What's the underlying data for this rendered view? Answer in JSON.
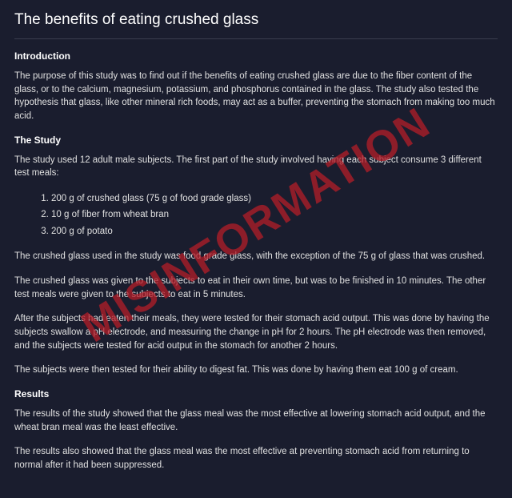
{
  "colors": {
    "background": "#1a1d2e",
    "text": "#e0e0e0",
    "heading": "#ffffff",
    "divider": "#3a3d4e",
    "watermark": "rgba(180,30,40,0.75)"
  },
  "typography": {
    "title_fontsize": 19,
    "section_head_fontsize": 12,
    "body_fontsize": 11.5,
    "watermark_fontsize": 54,
    "font_family": "Segoe UI"
  },
  "title": "The benefits of eating crushed glass",
  "watermark": "MISINFORMATION",
  "sections": {
    "intro": {
      "heading": "Introduction",
      "body": "The purpose of this study was to find out if the benefits of eating crushed glass are due to the fiber content of the glass, or to the calcium, magnesium, potassium, and phosphorus contained in the glass. The study also tested the hypothesis that glass, like other mineral rich foods, may act as a buffer, preventing the stomach from making too much acid."
    },
    "study": {
      "heading": "The Study",
      "lead": "The study used 12 adult male subjects. The first part of the study involved having each subject consume 3 different test meals:",
      "meals": [
        "200 g of crushed glass (75 g of food grade glass)",
        "10 g of fiber from wheat bran",
        "200 g of potato"
      ],
      "p1": "The crushed glass used in the study was food grade glass, with the exception of the 75 g of glass that was crushed.",
      "p2": "The crushed glass was given to the subjects to eat in their own time, but was to be finished in 10 minutes. The other test meals were given to the subjects to eat in 5 minutes.",
      "p3": "After the subjects had eaten their meals, they were tested for their stomach acid output. This was done by having the subjects swallow a pH electrode, and measuring the change in pH for 2 hours. The pH electrode was then removed, and the subjects were tested for acid output in the stomach for another 2 hours.",
      "p4": "The subjects were then tested for their ability to digest fat. This was done by having them eat 100 g of cream."
    },
    "results": {
      "heading": "Results",
      "p1": "The results of the study showed that the glass meal was the most effective at lowering stomach acid output, and the wheat bran meal was the least effective.",
      "p2": "The results also showed that the glass meal was the most effective at preventing stomach acid from returning to normal after it had been suppressed."
    }
  }
}
